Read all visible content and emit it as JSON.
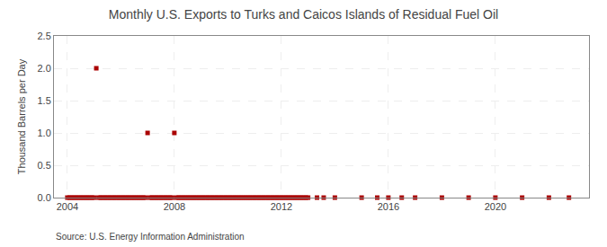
{
  "chart_data": {
    "type": "scatter",
    "title": "Monthly U.S. Exports to Turks and Caicos Islands of Residual Fuel Oil",
    "y_label": "Thousand Barrels per Day",
    "annotations": [
      "Source: U.S. Energy Information Administration"
    ],
    "color": "#aa0000",
    "marker": "square",
    "grid": true,
    "xlim": [
      2003.5,
      2023.5
    ],
    "xticks": [
      2004,
      2008,
      2012,
      2016,
      2020
    ],
    "ylim": [
      0,
      2.5
    ],
    "yticks": [
      {
        "value": 0,
        "label": "0.0"
      },
      0.5,
      {
        "value": 1,
        "label": "1.0"
      },
      1.5,
      {
        "value": 2,
        "label": "2.0"
      },
      2.5
    ],
    "x": [
      2004.0,
      2004.083,
      2004.167,
      2004.25,
      2004.333,
      2004.417,
      2004.5,
      2004.583,
      2004.667,
      2004.75,
      2004.833,
      2004.917,
      2005.0,
      2005.083,
      2005.167,
      2005.25,
      2005.333,
      2005.417,
      2005.5,
      2005.583,
      2005.667,
      2005.75,
      2005.833,
      2005.917,
      2006.0,
      2006.083,
      2006.167,
      2006.25,
      2006.333,
      2006.417,
      2006.5,
      2006.583,
      2006.667,
      2006.75,
      2006.833,
      2006.917,
      2007.0,
      2007.083,
      2007.167,
      2007.25,
      2007.333,
      2007.417,
      2007.5,
      2007.583,
      2007.667,
      2007.75,
      2007.833,
      2007.917,
      2008.0,
      2008.083,
      2008.167,
      2008.25,
      2008.333,
      2008.417,
      2008.5,
      2008.583,
      2008.667,
      2008.75,
      2008.833,
      2008.917,
      2009.0,
      2009.083,
      2009.167,
      2009.25,
      2009.333,
      2009.417,
      2009.5,
      2009.583,
      2009.667,
      2009.75,
      2009.833,
      2009.917,
      2010.0,
      2010.083,
      2010.167,
      2010.25,
      2010.333,
      2010.417,
      2010.5,
      2010.583,
      2010.667,
      2010.75,
      2010.833,
      2010.917,
      2011.0,
      2011.083,
      2011.167,
      2011.25,
      2011.333,
      2011.417,
      2011.5,
      2011.583,
      2011.667,
      2011.75,
      2011.833,
      2011.917,
      2012.0,
      2012.083,
      2012.167,
      2012.25,
      2012.333,
      2012.417,
      2012.5,
      2012.583,
      2012.667,
      2012.75,
      2012.833,
      2012.917,
      2013.0,
      2013.333,
      2013.583,
      2014.0,
      2015.0,
      2015.583,
      2016.0,
      2016.5,
      2017.0,
      2018.0,
      2019.0,
      2020.0,
      2021.0,
      2022.0,
      2022.75
    ],
    "values": [
      0.0,
      0.0,
      0.0,
      0.0,
      0.0,
      0.0,
      0.0,
      0.0,
      0.0,
      0.0,
      0.0,
      0.0,
      0.0,
      2.0,
      0.0,
      0.0,
      0.0,
      0.0,
      0.0,
      0.0,
      0.0,
      0.0,
      0.0,
      0.0,
      0.0,
      0.0,
      0.0,
      0.0,
      0.0,
      0.0,
      0.0,
      0.0,
      0.0,
      0.0,
      0.0,
      0.0,
      1.0,
      0.0,
      0.0,
      0.0,
      0.0,
      0.0,
      0.0,
      0.0,
      0.0,
      0.0,
      0.0,
      0.0,
      1.0,
      0.0,
      0.0,
      0.0,
      0.0,
      0.0,
      0.0,
      0.0,
      0.0,
      0.0,
      0.0,
      0.0,
      0.0,
      0.0,
      0.0,
      0.0,
      0.0,
      0.0,
      0.0,
      0.0,
      0.0,
      0.0,
      0.0,
      0.0,
      0.0,
      0.0,
      0.0,
      0.0,
      0.0,
      0.0,
      0.0,
      0.0,
      0.0,
      0.0,
      0.0,
      0.0,
      0.0,
      0.0,
      0.0,
      0.0,
      0.0,
      0.0,
      0.0,
      0.0,
      0.0,
      0.0,
      0.0,
      0.0,
      0.0,
      0.0,
      0.0,
      0.0,
      0.0,
      0.0,
      0.0,
      0.0,
      0.0,
      0.0,
      0.0,
      0.0,
      0.0,
      0.0,
      0.0,
      0.0,
      0.0,
      0.0,
      0.0,
      0.0,
      0.0,
      0.0,
      0.0,
      0.0,
      0.0,
      0.0,
      0.0
    ]
  }
}
